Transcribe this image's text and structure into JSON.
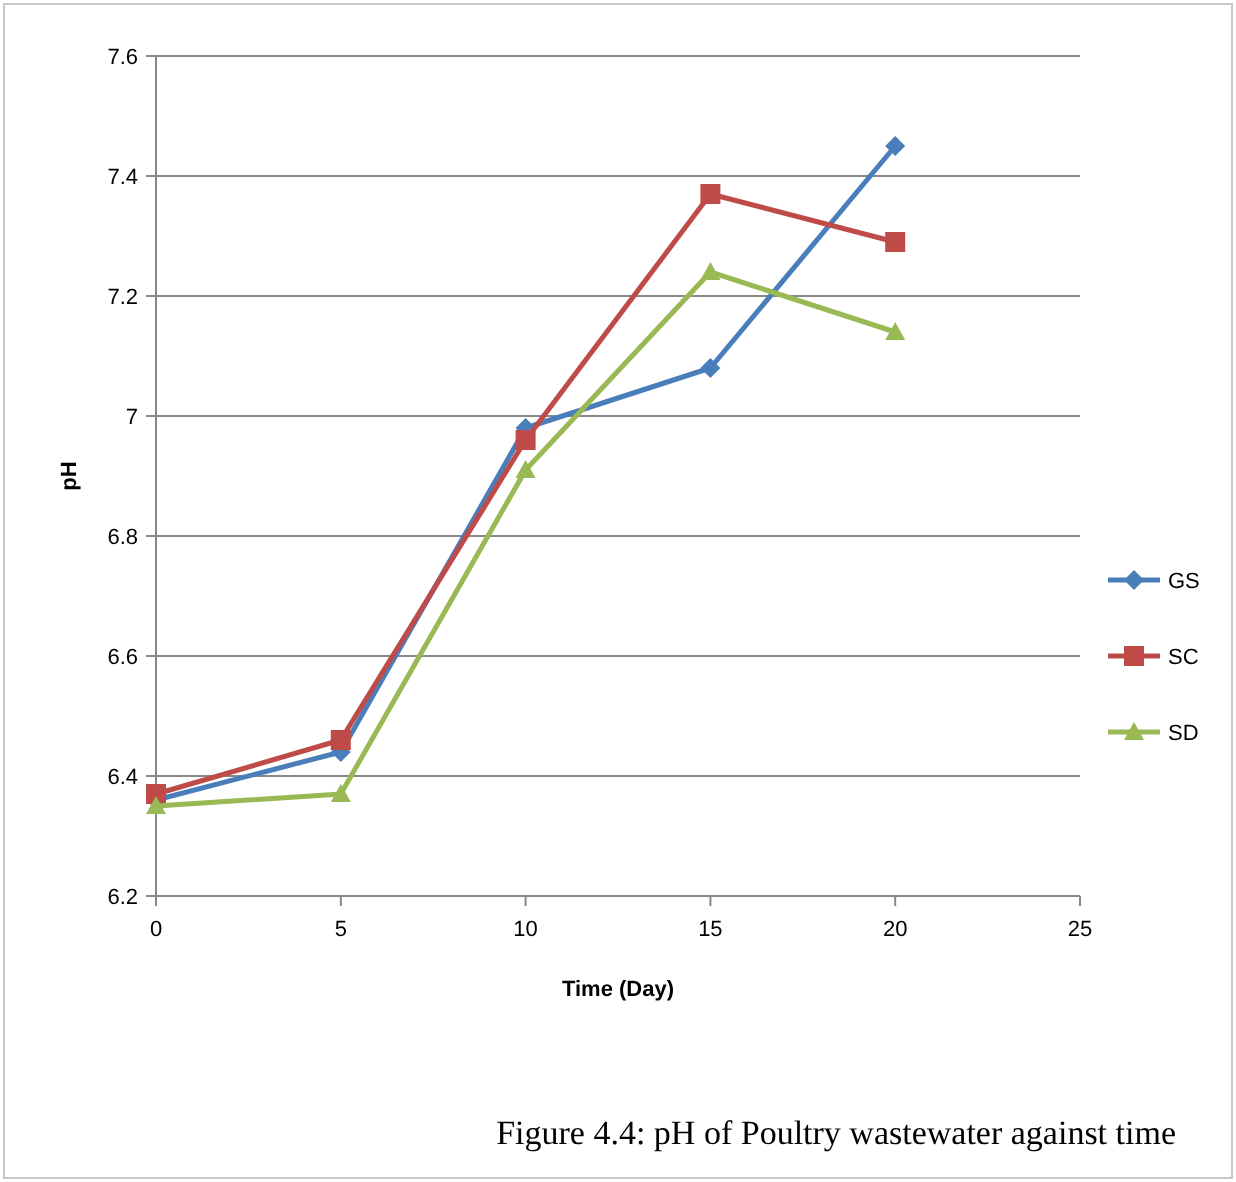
{
  "chart_data": {
    "type": "line",
    "xlabel": "Time (Day)",
    "ylabel": "pH",
    "x": [
      0,
      5,
      10,
      15,
      20
    ],
    "series": [
      {
        "name": "GS",
        "color": "#4a7ebb",
        "marker": "diamond",
        "values": [
          6.36,
          6.44,
          6.98,
          7.08,
          7.45
        ]
      },
      {
        "name": "SC",
        "color": "#be4b48",
        "marker": "square",
        "values": [
          6.37,
          6.46,
          6.96,
          7.37,
          7.29
        ]
      },
      {
        "name": "SD",
        "color": "#98b954",
        "marker": "triangle",
        "values": [
          6.35,
          6.37,
          6.91,
          7.24,
          7.14
        ]
      }
    ],
    "xlim": [
      0,
      25
    ],
    "xticks": [
      0,
      5,
      10,
      15,
      20,
      25
    ],
    "ylim": [
      6.2,
      7.6
    ],
    "yticks": [
      {
        "value": 6.2,
        "label": "6.2"
      },
      {
        "value": 6.4,
        "label": "6.4"
      },
      {
        "value": 6.6,
        "label": "6.6"
      },
      {
        "value": 6.8,
        "label": "6.8"
      },
      {
        "value": 7,
        "label": "7"
      },
      {
        "value": 7.2,
        "label": "7.2"
      },
      {
        "value": 7.4,
        "label": "7.4"
      },
      {
        "value": 7.6,
        "label": "7.6"
      }
    ],
    "grid": "y",
    "legend": "right",
    "line_style": "solid",
    "annotations": [
      "Figure 4.4:  pH of Poultry wastewater against time"
    ]
  }
}
